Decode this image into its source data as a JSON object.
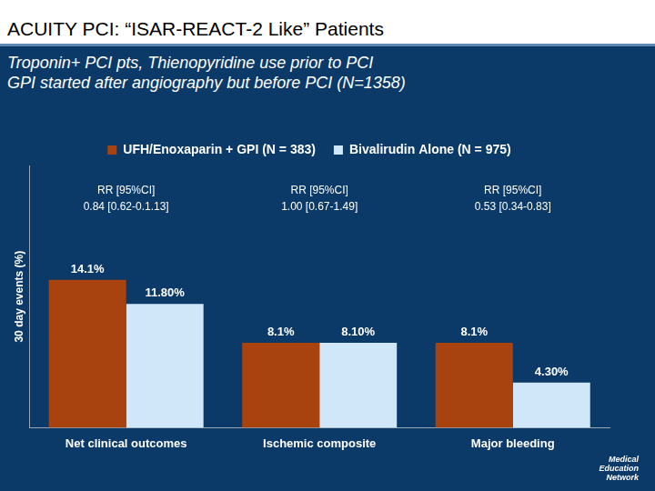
{
  "chart_data": {
    "type": "bar",
    "title": "ACUITY PCI: “ISAR-REACT-2 Like” Patients",
    "subtitle": [
      "Troponin+ PCI pts, Thienopyridine use prior to PCI",
      "GPI started after angiography but before PCI (N=1358)"
    ],
    "y_label": "30 day events (%)",
    "categories": [
      "Net clinical outcomes",
      "Ischemic composite",
      "Major bleeding"
    ],
    "series": [
      {
        "name": "UFH/Enoxaparin + GPI (N = 383)",
        "color": "#a8420f",
        "values": [
          14.1,
          8.1,
          8.1
        ],
        "value_labels": [
          "14.1%",
          "8.1%",
          "8.1%"
        ]
      },
      {
        "name": "Bivalirudin Alone (N = 975)",
        "color": "#cfe7f8",
        "values": [
          11.8,
          8.1,
          4.3
        ],
        "value_labels": [
          "11.80%",
          "8.10%",
          "4.30%"
        ]
      }
    ],
    "ylim": [
      0,
      25
    ],
    "tick_labels": "x",
    "grid": false,
    "legend": "top",
    "data_labels": true,
    "annotations": [
      {
        "category": "Net clinical outcomes",
        "lines": [
          "RR [95%CI]",
          "0.84 [0.62-0.1.13]"
        ]
      },
      {
        "category": "Ischemic composite",
        "lines": [
          "RR [95%CI]",
          "1.00 [0.67-1.49]"
        ]
      },
      {
        "category": "Major bleeding",
        "lines": [
          "RR [95%CI]",
          "0.53 [0.34-0.83]"
        ]
      }
    ],
    "footer": "Medical Education Network"
  }
}
